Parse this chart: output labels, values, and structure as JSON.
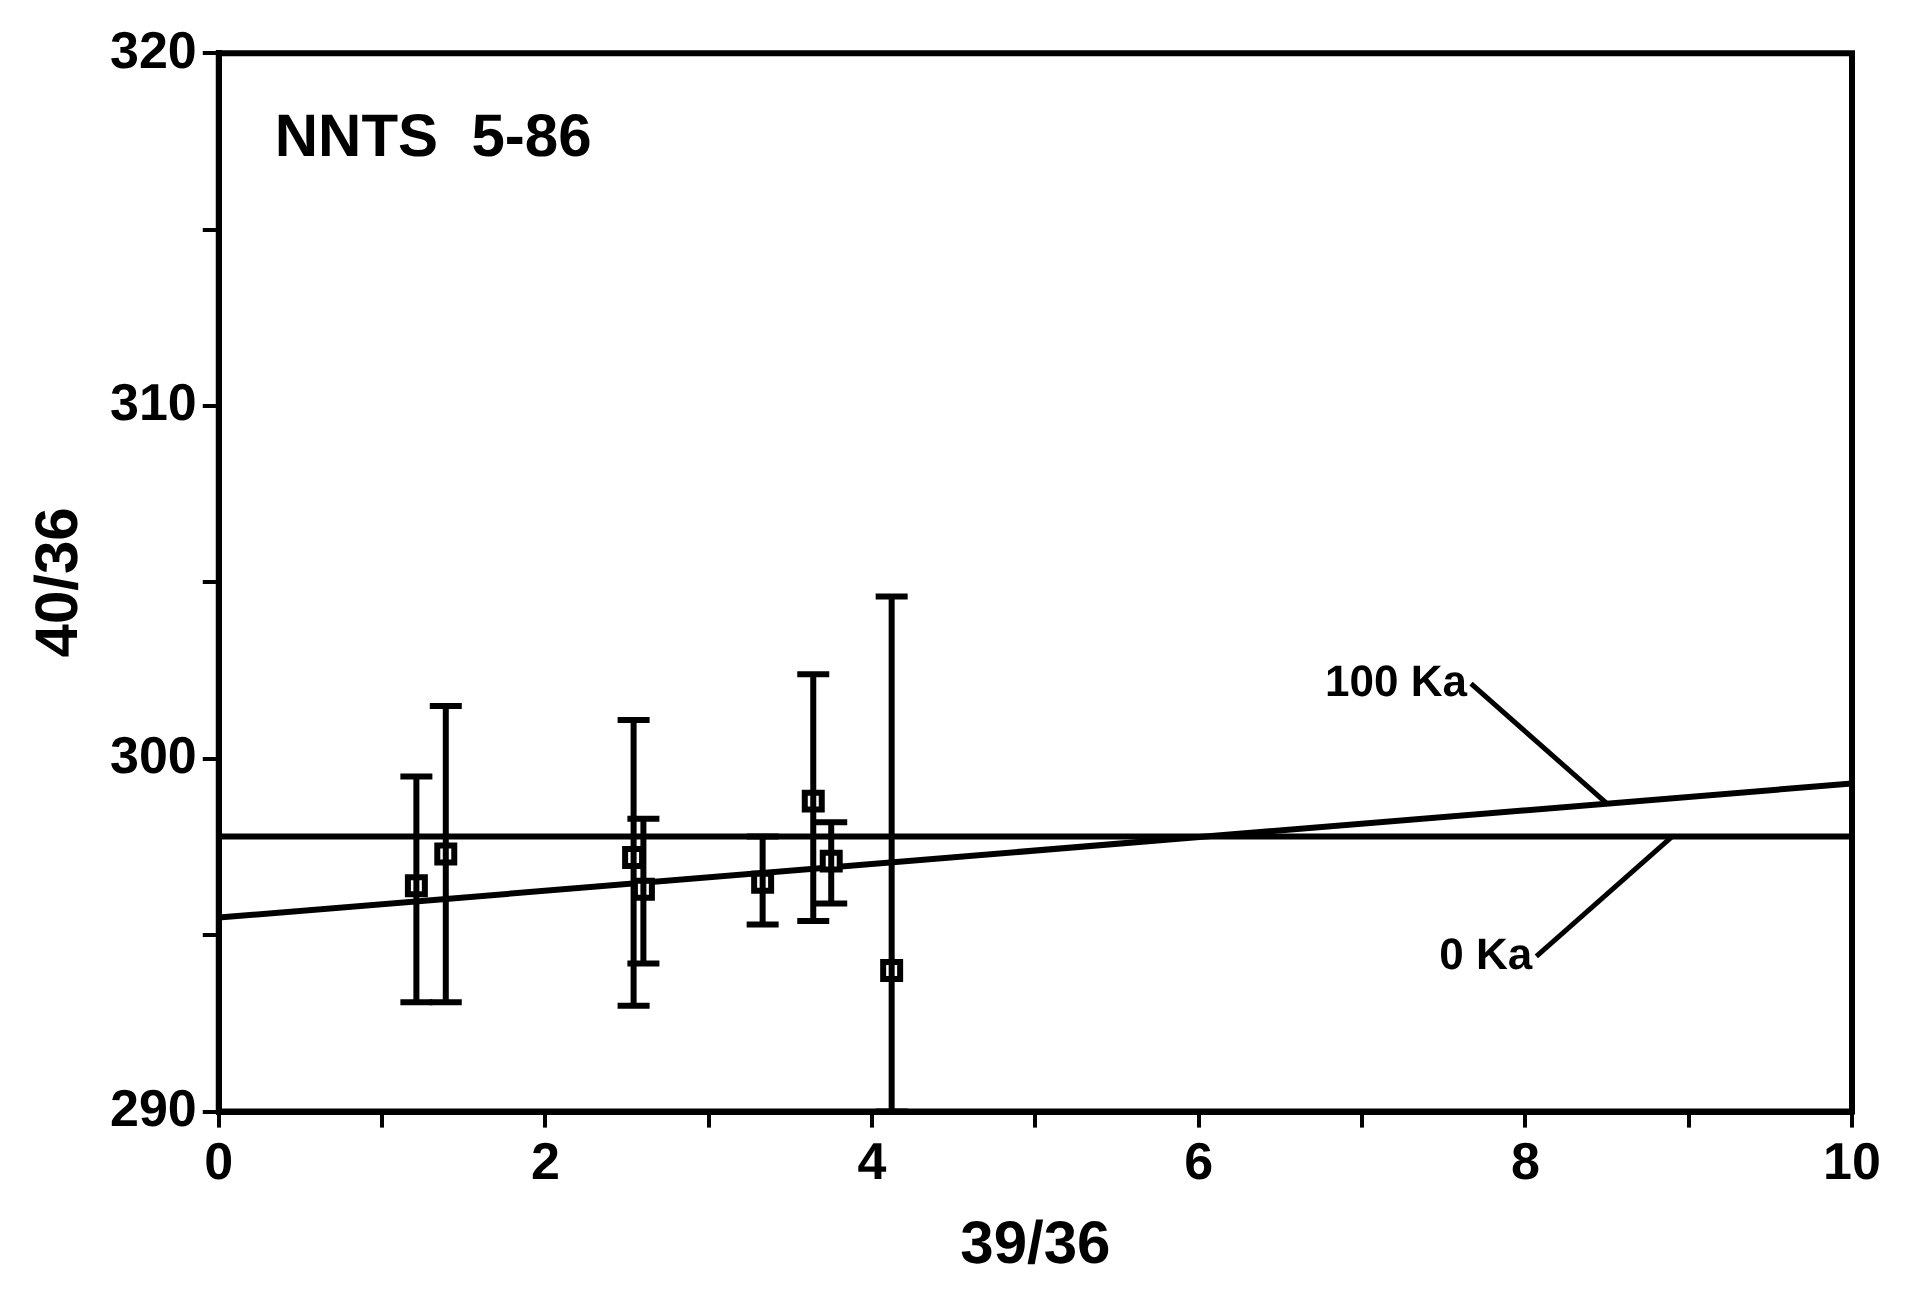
{
  "chart_data": {
    "type": "scatter",
    "xlabel": "39/36",
    "ylabel": "40/36",
    "annotations": [
      "NNTS  5-86"
    ],
    "xlim": [
      0,
      10
    ],
    "ylim": [
      290,
      320
    ],
    "xticks": [
      0,
      {
        "value": 1,
        "label": null
      },
      2,
      {
        "value": 3,
        "label": null
      },
      4,
      {
        "value": 5,
        "label": null
      },
      6,
      {
        "value": 7,
        "label": null
      },
      8,
      {
        "value": 9,
        "label": null
      },
      10
    ],
    "yticks": [
      290,
      {
        "value": 295,
        "label": null
      },
      300,
      {
        "value": 305,
        "label": null
      },
      310,
      {
        "value": 315,
        "label": null
      },
      320
    ],
    "grid": false,
    "legend": false,
    "marker": "square",
    "series": [
      {
        "type": "scatter",
        "color": "#000000",
        "x": [
          1.21,
          1.39,
          2.54,
          2.6,
          3.33,
          3.64,
          3.75,
          4.12
        ],
        "values": [
          296.4,
          297.3,
          297.2,
          296.3,
          296.5,
          298.8,
          297.1,
          294.0
        ],
        "errors": [
          [
            293.1,
            299.5
          ],
          [
            293.1,
            301.5
          ],
          [
            293.0,
            301.1
          ],
          [
            294.2,
            298.3
          ],
          [
            295.3,
            297.8
          ],
          [
            295.4,
            302.4
          ],
          [
            295.9,
            298.2
          ],
          [
            290,
            304.6
          ]
        ]
      },
      {
        "type": "line",
        "name": "100 Ka",
        "color": "#000000",
        "x": [
          0,
          10
        ],
        "values": [
          295.5,
          299.3
        ],
        "line_style": "solid",
        "marker": "none"
      },
      {
        "type": "line",
        "name": "0 Ka",
        "color": "#000000",
        "x": [
          0,
          10
        ],
        "values": [
          297.8,
          297.8
        ],
        "line_style": "solid",
        "marker": "none"
      }
    ]
  }
}
